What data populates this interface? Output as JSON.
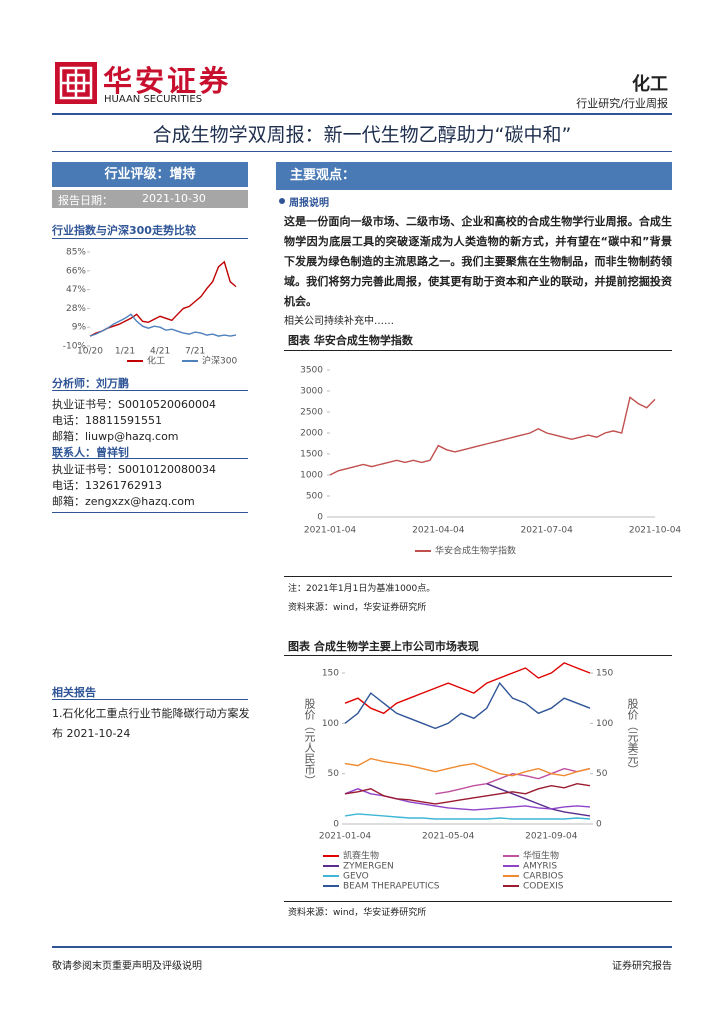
{
  "header": {
    "logo_cn": "华安证券",
    "logo_en": "HUAAN SECURITIES",
    "sector": "化工",
    "category": "行业研究/行业周报"
  },
  "title": "合成生物学双周报：新一代生物乙醇助力“碳中和”",
  "sidebar": {
    "rating": "行业评级：增持",
    "date_label": "报告日期：",
    "date": "2021-10-30",
    "chart_title": "行业指数与沪深300走势比较",
    "analyst_label": "分析师：刘万鹏",
    "analyst": [
      "执业证书号：S0010520060004",
      "电话：18811591551",
      "邮箱：liuwp@hazq.com"
    ],
    "contact_label": "联系人：曾祥钊",
    "contact": [
      "执业证书号：S0010120080034",
      "电话：13261762913",
      "邮箱：zengxzx@hazq.com"
    ],
    "related_title": "相关报告",
    "related": [
      "1.石化化工重点行业节能降碳行动方案发布 2021-10-24"
    ]
  },
  "main": {
    "heading": "主要观点：",
    "section": "周报说明",
    "paragraph": "这是一份面向一级市场、二级市场、企业和高校的合成生物学行业周报。合成生物学因为底层工具的突破逐渐成为人类造物的新方式，并有望在“碳中和”背景下发展为绿色制造的主流思路之一。我们主要聚焦在生物制品，而非生物制药领域。我们将努力完善此周报，使其更有助于资本和产业的联动，并提前挖掘投资机会。",
    "note": "相关公司持续补充中……",
    "figure1_title": "图表  华安合成生物学指数",
    "figure1_note": "注：2021年1月1日为基准1000点。",
    "figure1_source": "资料来源：wind，华安证券研究所",
    "figure2_title": "图表  合成生物学主要上市公司市场表现",
    "figure2_source": "资料来源：wind，华安证券研究所"
  },
  "footer": {
    "left": "敬请参阅末页重要声明及评级说明",
    "right": "证券研究报告"
  },
  "chart_data": [
    {
      "type": "line",
      "categories": [
        "10/20",
        null,
        null,
        null,
        null,
        null,
        "1/21",
        null,
        null,
        null,
        null,
        null,
        "4/21",
        null,
        null,
        null,
        null,
        null,
        "7/21",
        null,
        null,
        null,
        null,
        null,
        null,
        null
      ],
      "ylim": [
        -10,
        85
      ],
      "yticks": [
        {
          "value": 85,
          "label": "85%"
        },
        {
          "value": 66,
          "label": "66%"
        },
        {
          "value": 47,
          "label": "47%"
        },
        {
          "value": 28,
          "label": "28%"
        },
        {
          "value": 9,
          "label": "9%"
        },
        {
          "value": -10,
          "label": "-10%"
        }
      ],
      "series": [
        {
          "name": "化工",
          "color": "#c00000",
          "values": [
            0,
            3,
            5,
            8,
            10,
            12,
            15,
            18,
            22,
            15,
            14,
            17,
            20,
            18,
            16,
            22,
            28,
            30,
            35,
            40,
            48,
            55,
            70,
            75,
            55,
            50
          ]
        },
        {
          "name": "沪深300",
          "color": "#4f81bd",
          "values": [
            0,
            2,
            5,
            8,
            12,
            15,
            18,
            22,
            15,
            10,
            8,
            10,
            9,
            6,
            7,
            5,
            3,
            2,
            4,
            3,
            1,
            2,
            0,
            1,
            0,
            1
          ]
        }
      ]
    },
    {
      "type": "line",
      "categories": [
        "2021-01-04",
        null,
        null,
        null,
        null,
        null,
        null,
        null,
        null,
        null,
        null,
        null,
        null,
        "2021-04-04",
        null,
        null,
        null,
        null,
        null,
        null,
        null,
        null,
        null,
        null,
        null,
        null,
        "2021-07-04",
        null,
        null,
        null,
        null,
        null,
        null,
        null,
        null,
        null,
        null,
        null,
        null,
        "2021-10-04"
      ],
      "ylim": [
        0,
        3500
      ],
      "yticks": [
        0,
        500,
        1000,
        1500,
        2000,
        2500,
        3000,
        3500
      ],
      "series": [
        {
          "name": "华安合成生物学指数",
          "color": "#c0504d",
          "values": [
            1000,
            1100,
            1150,
            1200,
            1250,
            1200,
            1250,
            1300,
            1350,
            1300,
            1350,
            1300,
            1350,
            1700,
            1600,
            1550,
            1600,
            1650,
            1700,
            1750,
            1800,
            1850,
            1900,
            1950,
            2000,
            2100,
            2000,
            1950,
            1900,
            1850,
            1900,
            1950,
            1900,
            2000,
            2050,
            2000,
            2850,
            2700,
            2600,
            2800
          ]
        }
      ]
    },
    {
      "type": "line",
      "y_label": "股价（元人民币）",
      "y2_label": "股价（元美元）",
      "categories": [
        "2021-01-04",
        null,
        null,
        null,
        null,
        null,
        null,
        null,
        "2021-05-04",
        null,
        null,
        null,
        null,
        null,
        null,
        null,
        "2021-09-04",
        null,
        null,
        null
      ],
      "ylim": [
        0,
        150
      ],
      "yticks": [
        0,
        50,
        100,
        150
      ],
      "y2lim": [
        0,
        150
      ],
      "y2ticks": [
        0,
        50,
        100,
        150
      ],
      "series": [
        {
          "name": "凯赛生物",
          "color": "#e00000",
          "values": [
            120,
            125,
            115,
            110,
            120,
            125,
            130,
            135,
            140,
            135,
            130,
            140,
            145,
            150,
            155,
            145,
            150,
            160,
            155,
            150
          ]
        },
        {
          "name": "华恒生物",
          "color": "#c050a0",
          "values": [
            null,
            null,
            null,
            null,
            null,
            null,
            null,
            30,
            32,
            35,
            38,
            40,
            45,
            50,
            48,
            45,
            50,
            55,
            52,
            55
          ]
        },
        {
          "name": "ZYMERGEN",
          "color": "#5b2c8f",
          "axis": "y2",
          "values": [
            null,
            null,
            null,
            null,
            null,
            null,
            null,
            null,
            null,
            null,
            null,
            40,
            35,
            30,
            25,
            20,
            15,
            12,
            10,
            8
          ]
        },
        {
          "name": "AMYRIS",
          "color": "#8e44c8",
          "axis": "y2",
          "values": [
            30,
            35,
            30,
            28,
            25,
            22,
            20,
            18,
            16,
            15,
            14,
            15,
            16,
            17,
            18,
            16,
            15,
            17,
            18,
            17
          ]
        },
        {
          "name": "GEVO",
          "color": "#3fb6d6",
          "axis": "y2",
          "values": [
            8,
            10,
            9,
            8,
            7,
            6,
            6,
            5,
            5,
            5,
            5,
            5,
            6,
            5,
            5,
            5,
            5,
            5,
            6,
            5
          ]
        },
        {
          "name": "CARBIOS",
          "color": "#f08a30",
          "axis": "y2",
          "values": [
            60,
            58,
            65,
            62,
            60,
            58,
            55,
            52,
            55,
            58,
            60,
            55,
            50,
            48,
            52,
            55,
            50,
            48,
            52,
            55
          ]
        },
        {
          "name": "BEAM THERAPEUTICS",
          "color": "#2f5597",
          "axis": "y2",
          "values": [
            100,
            110,
            130,
            120,
            110,
            105,
            100,
            95,
            100,
            110,
            105,
            115,
            140,
            125,
            120,
            110,
            115,
            125,
            120,
            115
          ]
        },
        {
          "name": "CODEXIS",
          "color": "#9b1b30",
          "axis": "y2",
          "values": [
            30,
            32,
            35,
            28,
            25,
            24,
            22,
            20,
            22,
            24,
            26,
            28,
            30,
            32,
            30,
            35,
            38,
            36,
            40,
            38
          ]
        }
      ]
    }
  ]
}
